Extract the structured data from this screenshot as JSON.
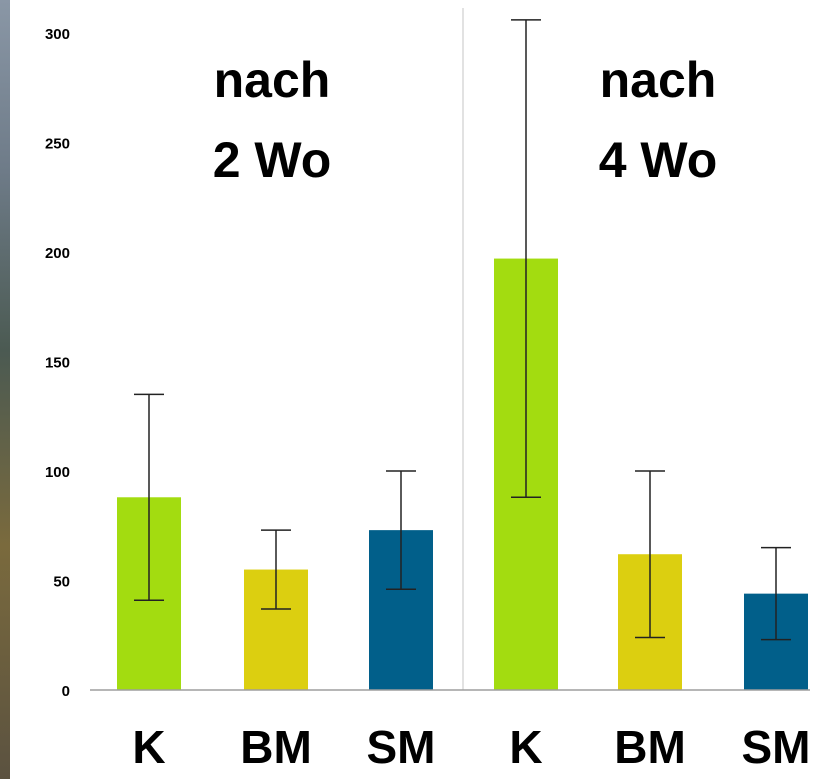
{
  "chart_data": {
    "type": "bar",
    "title": "",
    "xlabel": "",
    "ylabel": "",
    "ylim": [
      0,
      300
    ],
    "y_ticks": [
      "0",
      "50",
      "100",
      "150",
      "200",
      "250",
      "300"
    ],
    "grid": false,
    "groups": [
      {
        "title_lines": [
          "nach",
          "2 Wo"
        ],
        "bars": [
          {
            "category": "K",
            "value": 88,
            "err_low": 41,
            "err_high": 135,
            "color": "#a3dc10"
          },
          {
            "category": "BM",
            "value": 55,
            "err_low": 37,
            "err_high": 73,
            "color": "#dccf10"
          },
          {
            "category": "SM",
            "value": 73,
            "err_low": 46,
            "err_high": 100,
            "color": "#015f8a"
          }
        ]
      },
      {
        "title_lines": [
          "nach",
          "4 Wo"
        ],
        "bars": [
          {
            "category": "K",
            "value": 197,
            "err_low": 88,
            "err_high": 306,
            "color": "#a3dc10"
          },
          {
            "category": "BM",
            "value": 62,
            "err_low": 24,
            "err_high": 100,
            "color": "#dccf10"
          },
          {
            "category": "SM",
            "value": 44,
            "err_low": 23,
            "err_high": 65,
            "color": "#015f8a"
          }
        ]
      }
    ]
  }
}
